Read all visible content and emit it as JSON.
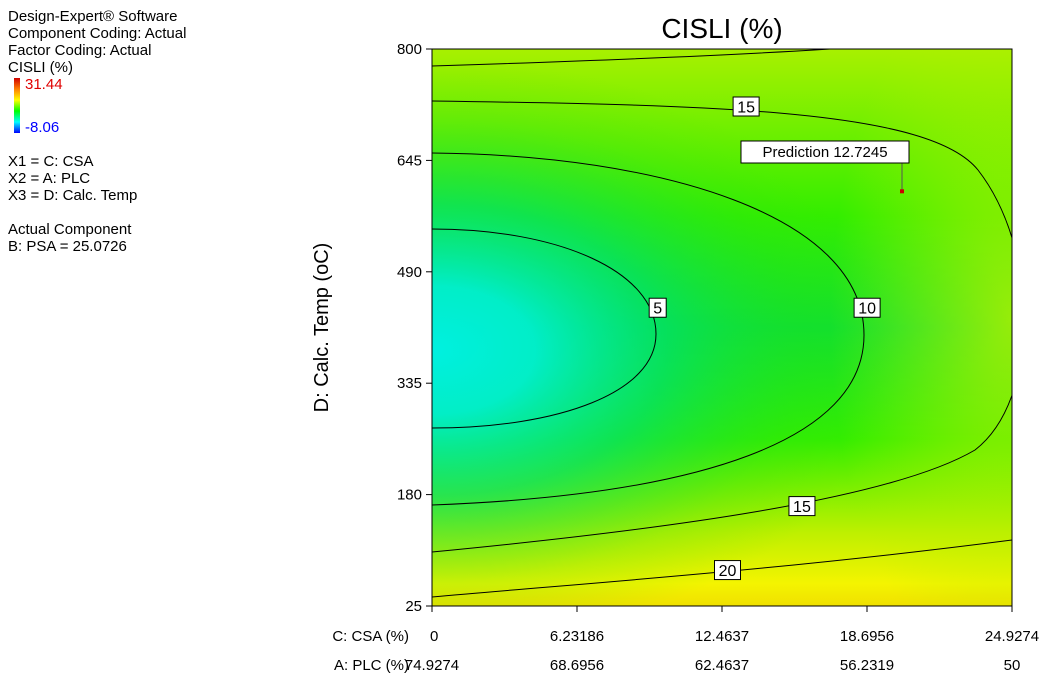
{
  "info": {
    "software": "Design-Expert® Software",
    "component_coding": "Component Coding: Actual",
    "factor_coding": "Factor Coding: Actual",
    "response": "CISLI (%)",
    "legend_max": "31.44",
    "legend_min": "-8.06",
    "x1": "X1 = C: CSA",
    "x2": "X2 = A: PLC",
    "x3": "X3 = D: Calc. Temp",
    "actual_component_title": "Actual Component",
    "actual_component_value": "B: PSA = 25.0726"
  },
  "chart_data": {
    "type": "contour",
    "title": "CISLI (%)",
    "ylabel": "D: Calc. Temp (oC)",
    "x_axes": [
      {
        "name": "C: CSA (%)",
        "ticks": [
          "0",
          "6.23186",
          "12.4637",
          "18.6956",
          "24.9274"
        ]
      },
      {
        "name": "A: PLC (%)",
        "ticks": [
          "74.9274",
          "68.6956",
          "62.4637",
          "56.2319",
          "50"
        ]
      }
    ],
    "yticks": [
      "25",
      "180",
      "335",
      "490",
      "645",
      "800"
    ],
    "xlim": [
      0,
      24.9274
    ],
    "ylim": [
      25,
      800
    ],
    "color_range": [
      -8.06,
      31.44
    ],
    "contour_labels": [
      {
        "text": "5",
        "value": 5,
        "x": 9.7,
        "y": 440
      },
      {
        "text": "10",
        "value": 10,
        "x": 18.7,
        "y": 440
      },
      {
        "text": "15",
        "value": 15,
        "x": 13.5,
        "y": 720
      },
      {
        "text": "15",
        "value": 15,
        "x": 15.9,
        "y": 164
      },
      {
        "text": "20",
        "value": 20,
        "x": 12.7,
        "y": 75
      }
    ],
    "prediction": {
      "label": "Prediction",
      "value": "12.7245",
      "x": 20.2,
      "y": 602
    }
  }
}
